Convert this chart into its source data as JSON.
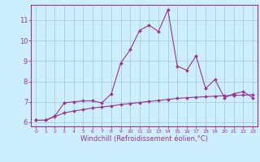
{
  "xlabel": "Windchill (Refroidissement éolien,°C)",
  "background_color": "#cceeff",
  "grid_color": "#aaccdd",
  "line_color": "#993399",
  "xlim": [
    -0.5,
    23.5
  ],
  "ylim": [
    5.8,
    11.75
  ],
  "yticks": [
    6,
    7,
    8,
    9,
    10,
    11
  ],
  "xticks": [
    0,
    1,
    2,
    3,
    4,
    5,
    6,
    7,
    8,
    9,
    10,
    11,
    12,
    13,
    14,
    15,
    16,
    17,
    18,
    19,
    20,
    21,
    22,
    23
  ],
  "series1_x": [
    0,
    1,
    2,
    3,
    4,
    5,
    6,
    7,
    8,
    9,
    10,
    11,
    12,
    13,
    14,
    15,
    16,
    17,
    18,
    19,
    20,
    21,
    22,
    23
  ],
  "series1_y": [
    6.1,
    6.1,
    6.3,
    6.95,
    7.0,
    7.05,
    7.05,
    6.95,
    7.4,
    8.9,
    9.55,
    10.5,
    10.75,
    10.45,
    11.5,
    8.75,
    8.55,
    9.25,
    7.65,
    8.1,
    7.2,
    7.4,
    7.5,
    7.2
  ],
  "series2_x": [
    0,
    1,
    2,
    3,
    4,
    5,
    6,
    7,
    8,
    9,
    10,
    11,
    12,
    13,
    14,
    15,
    16,
    17,
    18,
    19,
    20,
    21,
    22,
    23
  ],
  "series2_y": [
    6.1,
    6.1,
    6.28,
    6.46,
    6.55,
    6.62,
    6.7,
    6.75,
    6.8,
    6.87,
    6.92,
    6.97,
    7.02,
    7.07,
    7.12,
    7.17,
    7.2,
    7.23,
    7.25,
    7.28,
    7.3,
    7.32,
    7.33,
    7.35
  ],
  "xlabel_fontsize": 6,
  "xtick_fontsize": 4.5,
  "ytick_fontsize": 6,
  "linewidth": 0.8,
  "markersize": 2.0
}
